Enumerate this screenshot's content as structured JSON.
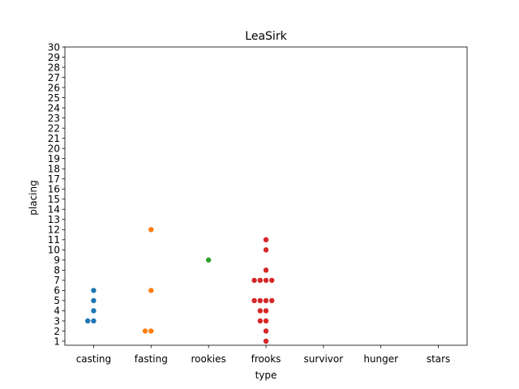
{
  "chart_data": {
    "type": "scatter",
    "title": "LeaSirk",
    "xlabel": "type",
    "ylabel": "placing",
    "categories": [
      "casting",
      "fasting",
      "rookies",
      "frooks",
      "survivor",
      "hunger",
      "stars"
    ],
    "ylim": [
      1,
      30
    ],
    "yticks": [
      1,
      2,
      3,
      4,
      5,
      6,
      7,
      8,
      9,
      10,
      11,
      12,
      13,
      14,
      15,
      16,
      17,
      18,
      19,
      20,
      21,
      22,
      23,
      24,
      25,
      26,
      27,
      28,
      29,
      30
    ],
    "grid": false,
    "series": [
      {
        "category": "casting",
        "color": "#1f77b4",
        "values": [
          3,
          3,
          4,
          5,
          6
        ]
      },
      {
        "category": "fasting",
        "color": "#ff7f0e",
        "values": [
          2,
          2,
          6,
          12
        ]
      },
      {
        "category": "rookies",
        "color": "#2ca02c",
        "values": [
          9
        ]
      },
      {
        "category": "frooks",
        "color": "#d62728",
        "values": [
          1,
          2,
          3,
          3,
          4,
          4,
          5,
          5,
          5,
          5,
          7,
          7,
          7,
          7,
          8,
          10,
          11
        ]
      },
      {
        "category": "survivor",
        "color": "#9467bd",
        "values": []
      },
      {
        "category": "hunger",
        "color": "#8c564b",
        "values": []
      },
      {
        "category": "stars",
        "color": "#e377c2",
        "values": []
      }
    ]
  }
}
